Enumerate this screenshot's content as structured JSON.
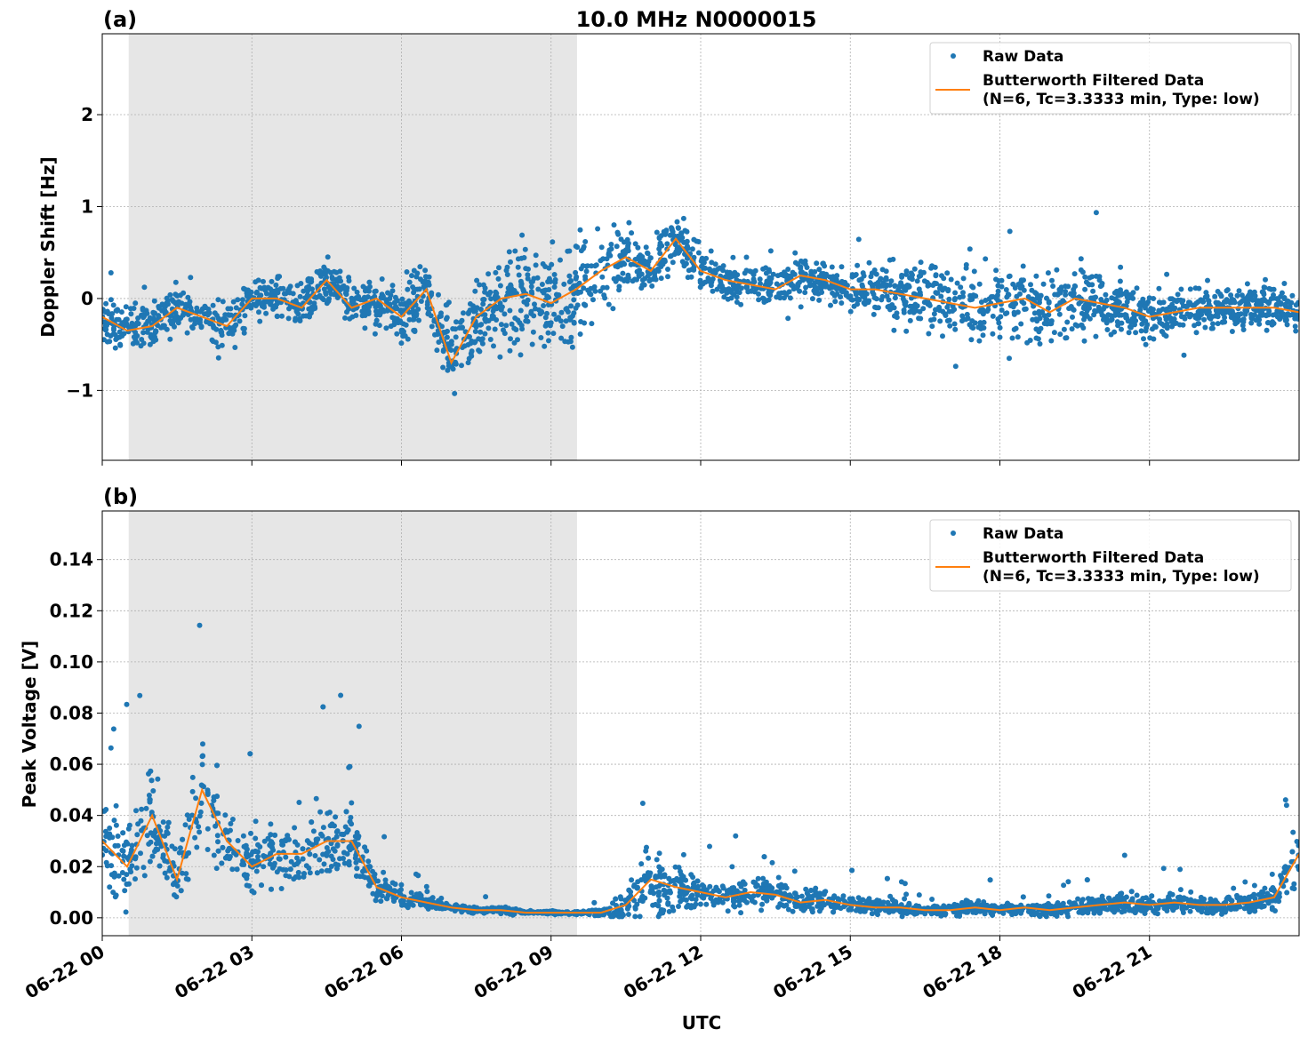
{
  "figure": {
    "title": "10.0 MHz N0000015",
    "xlabel": "UTC",
    "colors": {
      "raw": "#1f77b4",
      "filtered": "#ff7f0e",
      "shade": "#e6e6e6",
      "grid": "#b0b0b0"
    }
  },
  "chart_data": [
    {
      "type": "scatter+line",
      "panel_label": "(a)",
      "ylabel": "Doppler Shift [Hz]",
      "xlim_hours": [
        0,
        24
      ],
      "ylim": [
        -1.76,
        2.88
      ],
      "yticks": [
        -1,
        0,
        1,
        2
      ],
      "ytick_labels": [
        "−1",
        "0",
        "1",
        "2"
      ],
      "xtick_labels": [
        "06-22 00",
        "06-22 03",
        "06-22 06",
        "06-22 09",
        "06-22 12",
        "06-22 15",
        "06-22 18",
        "06-22 21"
      ],
      "xtick_hours": [
        0,
        3,
        6,
        9,
        12,
        15,
        18,
        21
      ],
      "grid": true,
      "shaded_span_hours": [
        0.53,
        9.52
      ],
      "legend": {
        "placement": "top-right",
        "entries": [
          "Raw Data",
          "Butterworth Filtered Data",
          "(N=6, Tc=3.3333 min, Type: low)"
        ]
      },
      "time_hours_step": 0.5,
      "filtered": [
        -0.2,
        -0.35,
        -0.3,
        -0.1,
        -0.2,
        -0.3,
        0.0,
        0.0,
        -0.1,
        0.2,
        -0.1,
        0.0,
        -0.2,
        0.1,
        -0.7,
        -0.2,
        0.0,
        0.05,
        -0.05,
        0.1,
        0.3,
        0.45,
        0.3,
        0.65,
        0.3,
        0.2,
        0.15,
        0.1,
        0.25,
        0.2,
        0.1,
        0.1,
        0.05,
        0.0,
        -0.05,
        -0.1,
        -0.05,
        0.0,
        -0.15,
        0.0,
        -0.05,
        -0.1,
        -0.2,
        -0.15,
        -0.1,
        -0.1,
        -0.1,
        -0.1,
        -0.15
      ],
      "raw_spread": [
        0.35,
        0.35,
        0.35,
        0.35,
        0.35,
        0.35,
        0.35,
        0.35,
        0.35,
        0.35,
        0.35,
        0.35,
        0.4,
        0.45,
        0.55,
        0.6,
        0.75,
        0.8,
        0.85,
        0.9,
        0.8,
        0.5,
        0.4,
        0.35,
        0.35,
        0.3,
        0.3,
        0.3,
        0.35,
        0.3,
        0.3,
        0.4,
        0.5,
        0.5,
        0.55,
        0.5,
        0.55,
        0.6,
        0.55,
        0.55,
        0.5,
        0.45,
        0.35,
        0.35,
        0.35,
        0.35,
        0.35,
        0.35,
        0.35
      ]
    },
    {
      "type": "scatter+line",
      "panel_label": "(b)",
      "ylabel": "Peak Voltage [V]",
      "xlim_hours": [
        0,
        24
      ],
      "ylim": [
        -0.007,
        0.159
      ],
      "yticks": [
        0,
        0.02,
        0.04,
        0.06,
        0.08,
        0.1,
        0.12,
        0.14
      ],
      "ytick_labels": [
        "0.00",
        "0.02",
        "0.04",
        "0.06",
        "0.08",
        "0.10",
        "0.12",
        "0.14"
      ],
      "xtick_labels": [
        "06-22 00",
        "06-22 03",
        "06-22 06",
        "06-22 09",
        "06-22 12",
        "06-22 15",
        "06-22 18",
        "06-22 21"
      ],
      "xtick_hours": [
        0,
        3,
        6,
        9,
        12,
        15,
        18,
        21
      ],
      "grid": true,
      "shaded_span_hours": [
        0.53,
        9.52
      ],
      "legend": {
        "placement": "top-right",
        "entries": [
          "Raw Data",
          "Butterworth Filtered Data",
          "(N=6, Tc=3.3333 min, Type: low)"
        ]
      },
      "time_hours_step": 0.5,
      "filtered": [
        0.03,
        0.02,
        0.04,
        0.015,
        0.05,
        0.03,
        0.02,
        0.025,
        0.025,
        0.03,
        0.03,
        0.012,
        0.008,
        0.006,
        0.004,
        0.003,
        0.003,
        0.002,
        0.002,
        0.002,
        0.002,
        0.005,
        0.015,
        0.012,
        0.01,
        0.008,
        0.01,
        0.009,
        0.006,
        0.007,
        0.005,
        0.004,
        0.004,
        0.003,
        0.003,
        0.004,
        0.003,
        0.004,
        0.003,
        0.004,
        0.005,
        0.006,
        0.005,
        0.006,
        0.005,
        0.005,
        0.006,
        0.008,
        0.025
      ],
      "raw_spread": [
        0.025,
        0.02,
        0.03,
        0.015,
        0.035,
        0.02,
        0.02,
        0.02,
        0.02,
        0.025,
        0.02,
        0.008,
        0.005,
        0.003,
        0.002,
        0.002,
        0.002,
        0.001,
        0.001,
        0.001,
        0.002,
        0.01,
        0.02,
        0.015,
        0.008,
        0.008,
        0.01,
        0.008,
        0.006,
        0.006,
        0.005,
        0.004,
        0.004,
        0.003,
        0.004,
        0.004,
        0.003,
        0.004,
        0.004,
        0.005,
        0.005,
        0.006,
        0.005,
        0.006,
        0.005,
        0.005,
        0.005,
        0.008,
        0.02
      ]
    }
  ]
}
